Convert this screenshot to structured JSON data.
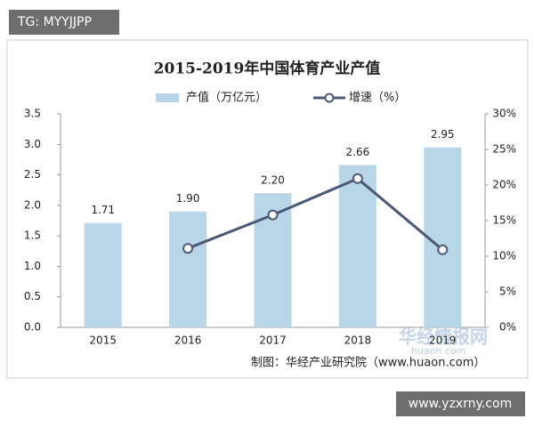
{
  "chart_data": {
    "type": "bar",
    "title": "2015-2019年中国体育产业产值",
    "categories": [
      "2015",
      "2016",
      "2017",
      "2018",
      "2019"
    ],
    "series": [
      {
        "name": "产值（万亿元）",
        "color": "#b9d6e8",
        "values": [
          1.71,
          1.9,
          2.2,
          2.66,
          2.95
        ],
        "value_labels": [
          "1.71",
          "1.90",
          "2.20",
          "2.66",
          "2.95"
        ]
      },
      {
        "name": "增速（%）",
        "type": "line",
        "axis": "y2",
        "color": "#4b5876",
        "values": [
          null,
          11.1,
          15.8,
          20.9,
          10.9
        ]
      }
    ],
    "ylim": [
      0,
      3.5
    ],
    "yticks": [
      {
        "value": 0,
        "label": "0.0"
      },
      0.5,
      {
        "value": 1,
        "label": "1.0"
      },
      1.5,
      {
        "value": 2,
        "label": "2.0"
      },
      2.5,
      {
        "value": 3,
        "label": "3.0"
      },
      3.5
    ],
    "y2lim": [
      0,
      30
    ],
    "y2ticks": [
      {
        "value": 0,
        "label": "0%"
      },
      {
        "value": 5,
        "label": "5%"
      },
      {
        "value": 10,
        "label": "10%"
      },
      {
        "value": 15,
        "label": "15%"
      },
      {
        "value": 20,
        "label": "20%"
      },
      {
        "value": 25,
        "label": "25%"
      },
      {
        "value": 30,
        "label": "30%"
      }
    ],
    "grid": false,
    "source": "制图：华经产业研究院（www.huaon.com）",
    "watermarks": [
      "TG: MYYJJPP",
      "华经情报网",
      "huaon.com",
      "www.yzxrny.com"
    ]
  }
}
